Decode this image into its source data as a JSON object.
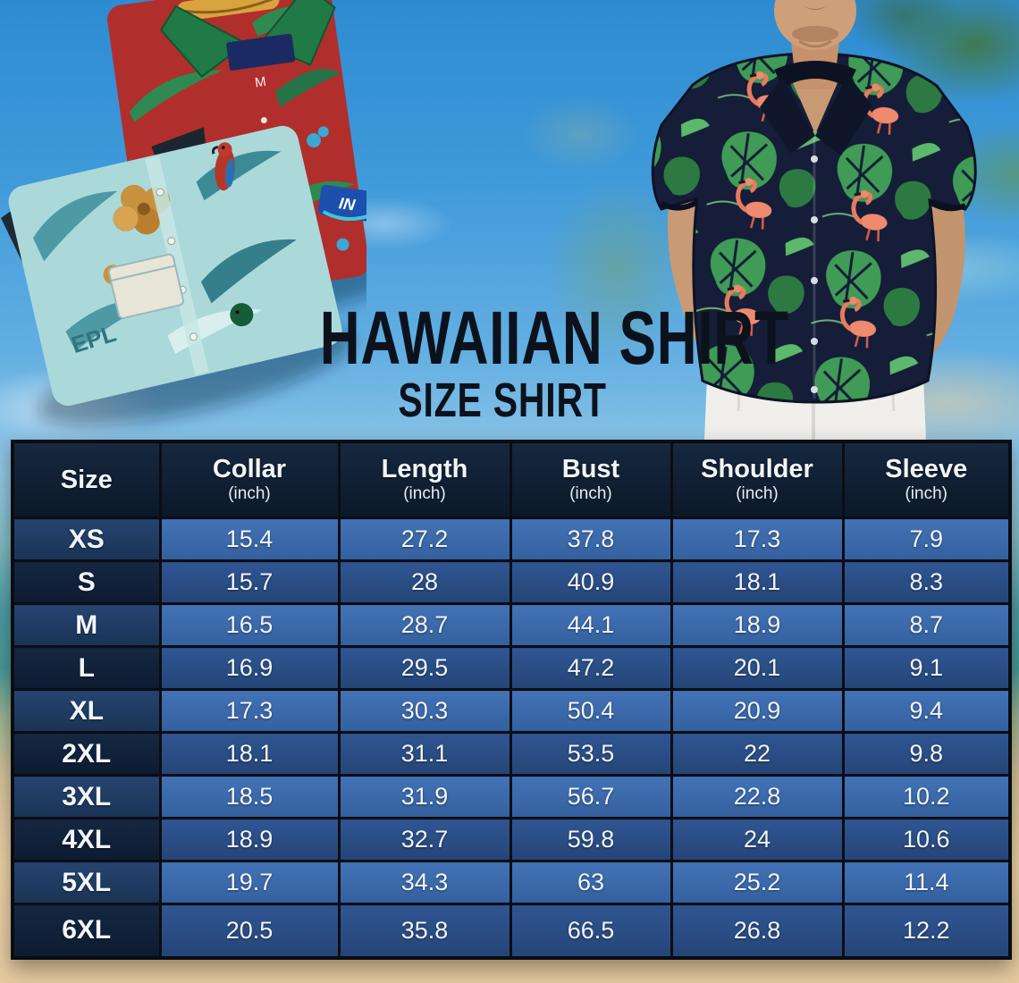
{
  "banner": {
    "title": "HAWAIIAN SHIRT",
    "subtitle": "SIZE SHIRT",
    "red_shirt_tag_size": "M",
    "red_shirt_patch_text": "IN",
    "teal_shirt_print_text": "EPL"
  },
  "table": {
    "columns": [
      {
        "label": "Size",
        "unit": ""
      },
      {
        "label": "Collar",
        "unit": "(inch)"
      },
      {
        "label": "Length",
        "unit": "(inch)"
      },
      {
        "label": "Bust",
        "unit": "(inch)"
      },
      {
        "label": "Shoulder",
        "unit": "(inch)"
      },
      {
        "label": "Sleeve",
        "unit": "(inch)"
      }
    ],
    "rows": [
      {
        "size": "XS",
        "collar": "15.4",
        "length": "27.2",
        "bust": "37.8",
        "shoulder": "17.3",
        "sleeve": "7.9"
      },
      {
        "size": "S",
        "collar": "15.7",
        "length": "28",
        "bust": "40.9",
        "shoulder": "18.1",
        "sleeve": "8.3"
      },
      {
        "size": "M",
        "collar": "16.5",
        "length": "28.7",
        "bust": "44.1",
        "shoulder": "18.9",
        "sleeve": "8.7"
      },
      {
        "size": "L",
        "collar": "16.9",
        "length": "29.5",
        "bust": "47.2",
        "shoulder": "20.1",
        "sleeve": "9.1"
      },
      {
        "size": "XL",
        "collar": "17.3",
        "length": "30.3",
        "bust": "50.4",
        "shoulder": "20.9",
        "sleeve": "9.4"
      },
      {
        "size": "2XL",
        "collar": "18.1",
        "length": "31.1",
        "bust": "53.5",
        "shoulder": "22",
        "sleeve": "9.8"
      },
      {
        "size": "3XL",
        "collar": "18.5",
        "length": "31.9",
        "bust": "56.7",
        "shoulder": "22.8",
        "sleeve": "10.2"
      },
      {
        "size": "4XL",
        "collar": "18.9",
        "length": "32.7",
        "bust": "59.8",
        "shoulder": "24",
        "sleeve": "10.6"
      },
      {
        "size": "5XL",
        "collar": "19.7",
        "length": "34.3",
        "bust": "63",
        "shoulder": "25.2",
        "sleeve": "11.4"
      },
      {
        "size": "6XL",
        "collar": "20.5",
        "length": "35.8",
        "bust": "66.5",
        "shoulder": "26.8",
        "sleeve": "12.2"
      }
    ]
  },
  "colors": {
    "header_bg": "#0d1b2e",
    "row_light_size_bg": "#1f3c64",
    "row_light_value_bg": "#3d6cb0",
    "row_dark_size_bg": "#102138",
    "row_dark_value_bg": "#2b5089",
    "table_border": "#0b0d13",
    "cell_text": "#f1f5f9",
    "title_text": "#0c121c",
    "sky": "#47a0dd",
    "sea": "#4f9da6",
    "sand": "#e8d0a6",
    "shirt_navy": "#151d38",
    "leaf_green": "#3f9b55",
    "flamingo_coral": "#ef8a6e"
  },
  "chart_data": {
    "type": "table",
    "title": "HAWAIIAN SHIRT — SIZE SHIRT",
    "columns": [
      "Size",
      "Collar (inch)",
      "Length (inch)",
      "Bust (inch)",
      "Shoulder (inch)",
      "Sleeve (inch)"
    ],
    "rows": [
      [
        "XS",
        15.4,
        27.2,
        37.8,
        17.3,
        7.9
      ],
      [
        "S",
        15.7,
        28,
        40.9,
        18.1,
        8.3
      ],
      [
        "M",
        16.5,
        28.7,
        44.1,
        18.9,
        8.7
      ],
      [
        "L",
        16.9,
        29.5,
        47.2,
        20.1,
        9.1
      ],
      [
        "XL",
        17.3,
        30.3,
        50.4,
        20.9,
        9.4
      ],
      [
        "2XL",
        18.1,
        31.1,
        53.5,
        22,
        9.8
      ],
      [
        "3XL",
        18.5,
        31.9,
        56.7,
        22.8,
        10.2
      ],
      [
        "4XL",
        18.9,
        32.7,
        59.8,
        24,
        10.6
      ],
      [
        "5XL",
        19.7,
        34.3,
        63,
        25.2,
        11.4
      ],
      [
        "6XL",
        20.5,
        35.8,
        66.5,
        26.8,
        12.2
      ]
    ]
  }
}
